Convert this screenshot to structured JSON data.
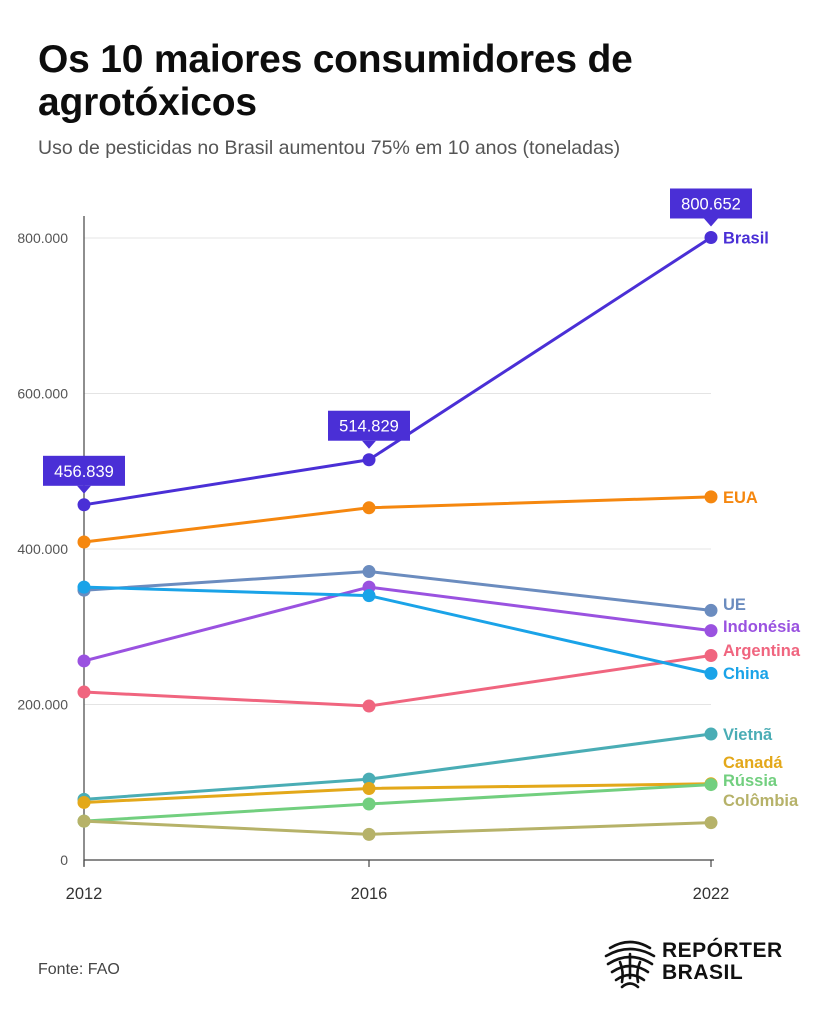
{
  "title": "Os 10 maiores consumidores de agrotóxicos",
  "subtitle": "Uso de pesticidas no Brasil aumentou 75% em 10 anos (toneladas)",
  "source": "Fonte: FAO",
  "logo": {
    "line1": "REPÓRTER",
    "line2": "BRASIL"
  },
  "chart_data": {
    "type": "line",
    "x": [
      "2012",
      "2016",
      "2022"
    ],
    "ylim": [
      0,
      800000
    ],
    "yticks": [
      0,
      200000,
      400000,
      600000,
      800000
    ],
    "ytick_labels": [
      "0",
      "200.000",
      "400.000",
      "600.000",
      "800.000"
    ],
    "grid": true,
    "series": [
      {
        "name": "Brasil",
        "color": "#4a2fd6",
        "values": [
          456839,
          514829,
          800652
        ],
        "point_labels": [
          "456.839",
          "514.829",
          "800.652"
        ]
      },
      {
        "name": "EUA",
        "color": "#f5870f",
        "values": [
          409000,
          453000,
          467000
        ]
      },
      {
        "name": "UE",
        "color": "#6b8cbf",
        "values": [
          347000,
          371000,
          321000
        ]
      },
      {
        "name": "Indonésia",
        "color": "#9a52e0",
        "values": [
          256000,
          351000,
          295000
        ]
      },
      {
        "name": "Argentina",
        "color": "#f0657f",
        "values": [
          216000,
          198000,
          263000
        ]
      },
      {
        "name": "China",
        "color": "#1aa3e8",
        "values": [
          351000,
          340000,
          240000
        ]
      },
      {
        "name": "Vietnã",
        "color": "#4aadb5",
        "values": [
          78000,
          104000,
          162000
        ]
      },
      {
        "name": "Canadá",
        "color": "#e3a81a",
        "values": [
          74000,
          92000,
          98000
        ]
      },
      {
        "name": "Rússia",
        "color": "#72cf7f",
        "values": [
          50000,
          72000,
          97000
        ]
      },
      {
        "name": "Colômbia",
        "color": "#b6b269",
        "values": [
          50000,
          33000,
          48000
        ]
      }
    ]
  }
}
